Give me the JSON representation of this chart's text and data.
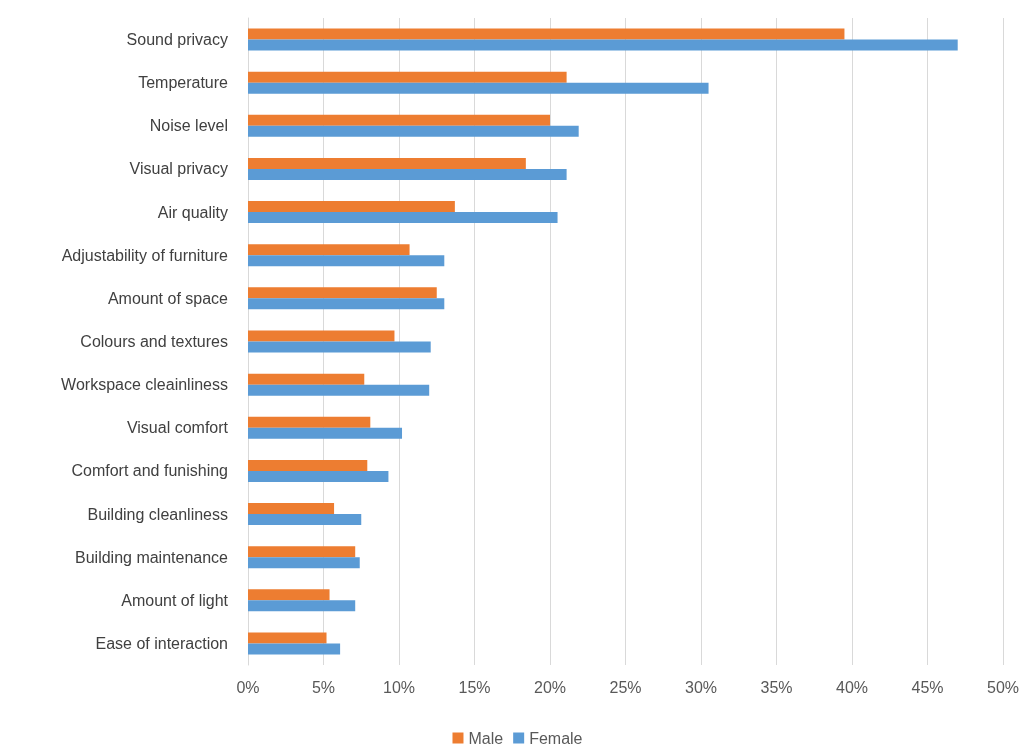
{
  "chart_data": {
    "type": "bar",
    "orientation": "horizontal",
    "categories": [
      "Sound privacy",
      "Temperature",
      "Noise level",
      "Visual privacy",
      "Air quality",
      "Adjustability of furniture",
      "Amount of space",
      "Colours and textures",
      "Workspace cleainliness",
      "Visual comfort",
      "Comfort and funishing",
      "Building cleanliness",
      "Building maintenance",
      "Amount of light",
      "Ease of interaction"
    ],
    "series": [
      {
        "name": "Male",
        "color": "#ed7d31",
        "values": [
          39.5,
          21.1,
          20.0,
          18.4,
          13.7,
          10.7,
          12.5,
          9.7,
          7.7,
          8.1,
          7.9,
          5.7,
          7.1,
          5.4,
          5.2
        ]
      },
      {
        "name": "Female",
        "color": "#5b9bd5",
        "values": [
          47.0,
          30.5,
          21.9,
          21.1,
          20.5,
          13.0,
          13.0,
          12.1,
          12.0,
          10.2,
          9.3,
          7.5,
          7.4,
          7.1,
          6.1
        ]
      }
    ],
    "xlim": [
      0,
      50
    ],
    "xticks": [
      {
        "value": 0,
        "label": "0%"
      },
      {
        "value": 5,
        "label": "5%"
      },
      {
        "value": 10,
        "label": "10%"
      },
      {
        "value": 15,
        "label": "15%"
      },
      {
        "value": 20,
        "label": "20%"
      },
      {
        "value": 25,
        "label": "25%"
      },
      {
        "value": 30,
        "label": "30%"
      },
      {
        "value": 35,
        "label": "35%"
      },
      {
        "value": 40,
        "label": "40%"
      },
      {
        "value": 45,
        "label": "45%"
      },
      {
        "value": 50,
        "label": "50%"
      }
    ],
    "grid": "x",
    "legend": "bottom"
  }
}
